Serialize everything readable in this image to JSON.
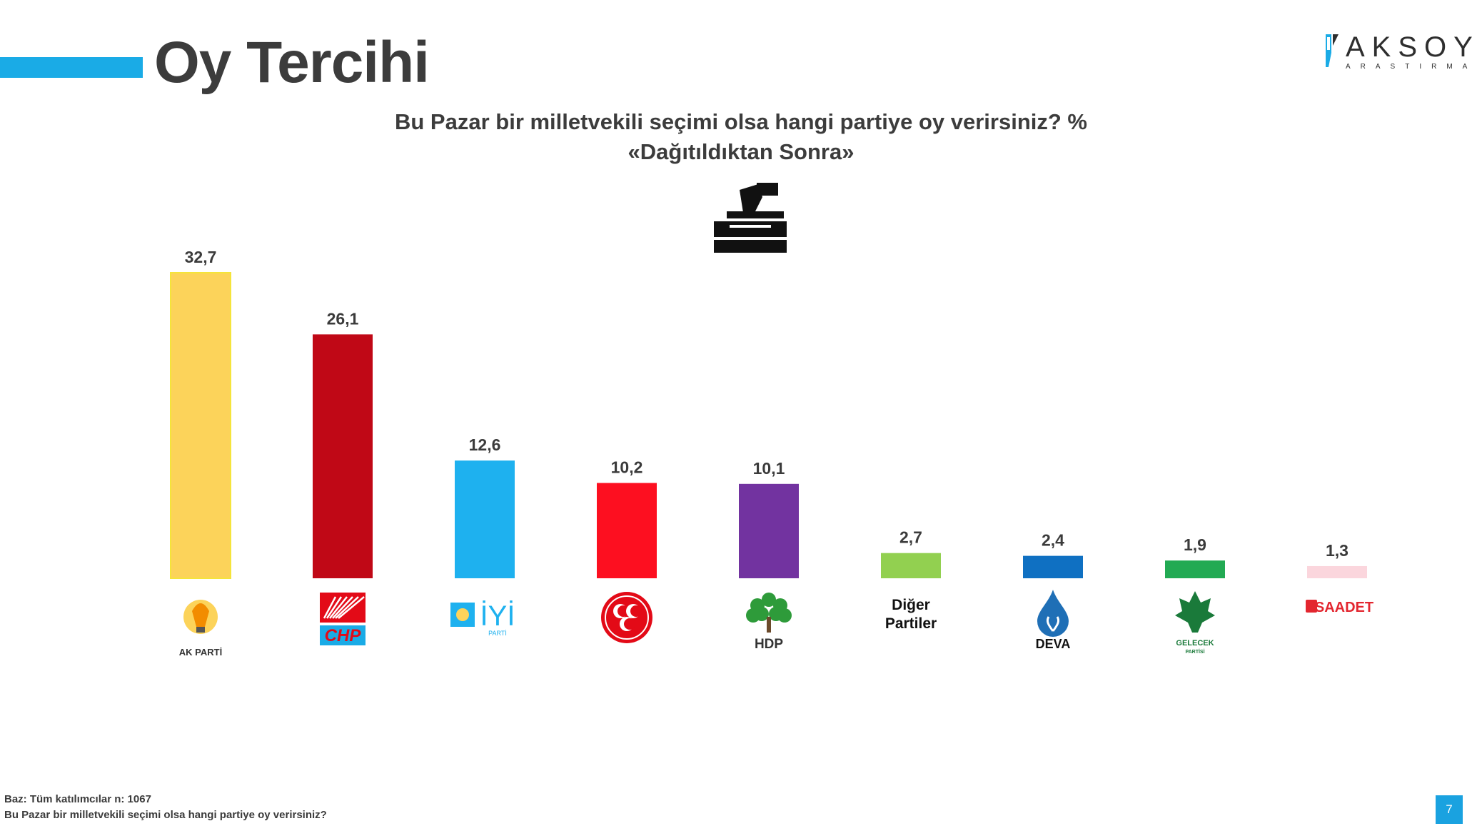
{
  "page_title": "Oy Tercihi",
  "brand": {
    "name": "AKSOY",
    "subtitle": "ARASTIRMA"
  },
  "question": {
    "title": "Bu Pazar bir milletvekili seçimi olsa hangi partiye oy verirsiniz? %",
    "subtitle": "«Dağıtıldıktan Sonra»"
  },
  "chart_data": {
    "type": "bar",
    "title": "Bu Pazar bir milletvekili seçimi olsa hangi partiye oy verirsiniz? %",
    "subtitle": "«Dağıtıldıktan Sonra»",
    "categories": [
      "AK PARTİ",
      "CHP",
      "İYİ",
      "MHP",
      "HDP",
      "Diğer Partiler",
      "DEVA",
      "GELECEK",
      "SAADET"
    ],
    "values": [
      32.7,
      26.1,
      12.6,
      10.2,
      10.1,
      2.7,
      2.4,
      1.9,
      1.3
    ],
    "value_labels": [
      "32,7",
      "26,1",
      "12,6",
      "10,2",
      "10,1",
      "2,7",
      "2,4",
      "1,9",
      "1,3"
    ],
    "colors": [
      "#fcd35a",
      "#c00816",
      "#1eb1ef",
      "#fd0f20",
      "#7233a0",
      "#92d050",
      "#0f70c2",
      "#22aa53",
      "#fbd6dd"
    ],
    "logo_labels": [
      "AK PARTİ",
      "CHP",
      "İYİ",
      "",
      "HDP",
      "Diğer Partiler",
      "DEVA",
      "GELECEK",
      "SAADET"
    ],
    "logo_sublabels": [
      "",
      "",
      "PARTİ",
      "",
      "",
      "",
      "",
      "PARTİSİ",
      ""
    ],
    "ylim": [
      0,
      32.7
    ],
    "xlabel": "",
    "ylabel": "",
    "grid": false,
    "legend": "none"
  },
  "footer": {
    "base": "Baz: Tüm katılımcılar n: 1067",
    "question": "Bu Pazar bir milletvekili seçimi olsa hangi partiye oy verirsiniz?"
  },
  "page_number": "7"
}
